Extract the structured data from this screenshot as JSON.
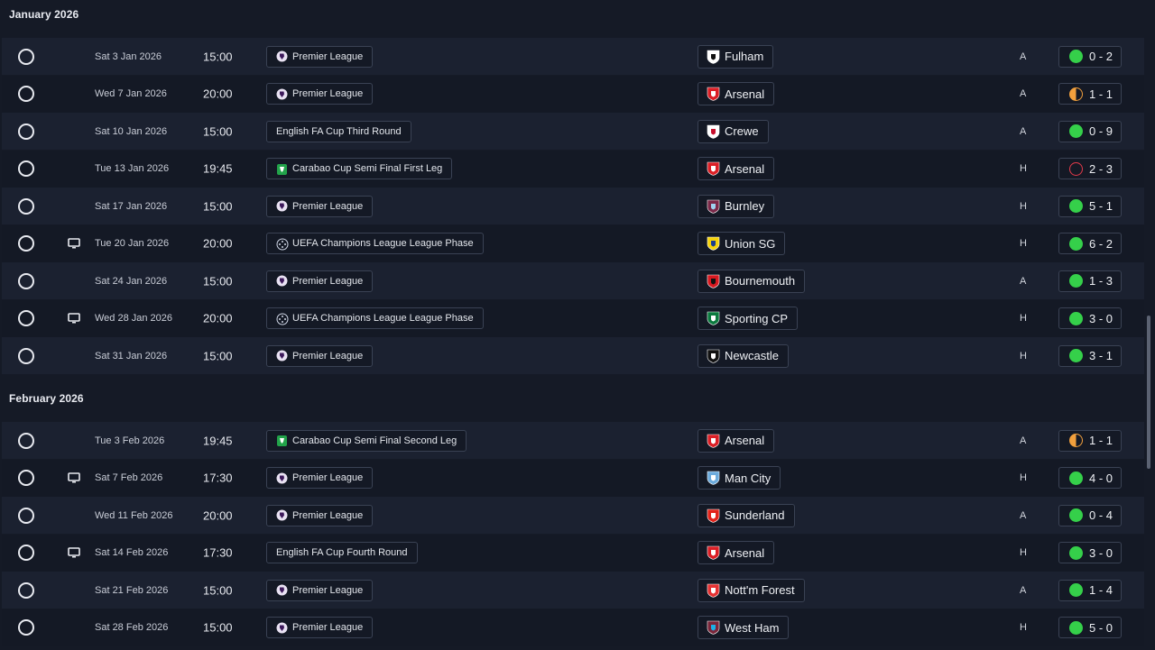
{
  "months": [
    {
      "label": "January 2026",
      "fixtures": [
        {
          "date": "Sat 3 Jan 2026",
          "time": "15:00",
          "competition": "Premier League",
          "comp_icon": "premier-league",
          "opponent": "Fulham",
          "crest": "fulham",
          "venue": "A",
          "result": "win",
          "score": "0 - 2",
          "tv": false
        },
        {
          "date": "Wed 7 Jan 2026",
          "time": "20:00",
          "competition": "Premier League",
          "comp_icon": "premier-league",
          "opponent": "Arsenal",
          "crest": "arsenal",
          "venue": "A",
          "result": "draw",
          "score": "1 - 1",
          "tv": false
        },
        {
          "date": "Sat 10 Jan 2026",
          "time": "15:00",
          "competition": "English FA Cup Third Round",
          "comp_icon": "",
          "opponent": "Crewe",
          "crest": "crewe",
          "venue": "A",
          "result": "win",
          "score": "0 - 9",
          "tv": false
        },
        {
          "date": "Tue 13 Jan 2026",
          "time": "19:45",
          "competition": "Carabao Cup Semi Final First Leg",
          "comp_icon": "carabao-cup",
          "opponent": "Arsenal",
          "crest": "arsenal",
          "venue": "H",
          "result": "loss",
          "score": "2 - 3",
          "tv": false
        },
        {
          "date": "Sat 17 Jan 2026",
          "time": "15:00",
          "competition": "Premier League",
          "comp_icon": "premier-league",
          "opponent": "Burnley",
          "crest": "burnley",
          "venue": "H",
          "result": "win",
          "score": "5 - 1",
          "tv": false
        },
        {
          "date": "Tue 20 Jan 2026",
          "time": "20:00",
          "competition": "UEFA Champions League League Phase",
          "comp_icon": "champions-league",
          "opponent": "Union SG",
          "crest": "union-sg",
          "venue": "H",
          "result": "win",
          "score": "6 - 2",
          "tv": true
        },
        {
          "date": "Sat 24 Jan 2026",
          "time": "15:00",
          "competition": "Premier League",
          "comp_icon": "premier-league",
          "opponent": "Bournemouth",
          "crest": "bournemouth",
          "venue": "A",
          "result": "win",
          "score": "1 - 3",
          "tv": false
        },
        {
          "date": "Wed 28 Jan 2026",
          "time": "20:00",
          "competition": "UEFA Champions League League Phase",
          "comp_icon": "champions-league",
          "opponent": "Sporting CP",
          "crest": "sporting",
          "venue": "H",
          "result": "win",
          "score": "3 - 0",
          "tv": true
        },
        {
          "date": "Sat 31 Jan 2026",
          "time": "15:00",
          "competition": "Premier League",
          "comp_icon": "premier-league",
          "opponent": "Newcastle",
          "crest": "newcastle",
          "venue": "H",
          "result": "win",
          "score": "3 - 1",
          "tv": false
        }
      ]
    },
    {
      "label": "February 2026",
      "fixtures": [
        {
          "date": "Tue 3 Feb 2026",
          "time": "19:45",
          "competition": "Carabao Cup Semi Final Second Leg",
          "comp_icon": "carabao-cup",
          "opponent": "Arsenal",
          "crest": "arsenal",
          "venue": "A",
          "result": "draw",
          "score": "1 - 1",
          "tv": false
        },
        {
          "date": "Sat 7 Feb 2026",
          "time": "17:30",
          "competition": "Premier League",
          "comp_icon": "premier-league",
          "opponent": "Man City",
          "crest": "man-city",
          "venue": "H",
          "result": "win",
          "score": "4 - 0",
          "tv": true
        },
        {
          "date": "Wed 11 Feb 2026",
          "time": "20:00",
          "competition": "Premier League",
          "comp_icon": "premier-league",
          "opponent": "Sunderland",
          "crest": "sunderland",
          "venue": "A",
          "result": "win",
          "score": "0 - 4",
          "tv": false
        },
        {
          "date": "Sat 14 Feb 2026",
          "time": "17:30",
          "competition": "English FA Cup Fourth Round",
          "comp_icon": "",
          "opponent": "Arsenal",
          "crest": "arsenal",
          "venue": "H",
          "result": "win",
          "score": "3 - 0",
          "tv": true
        },
        {
          "date": "Sat 21 Feb 2026",
          "time": "15:00",
          "competition": "Premier League",
          "comp_icon": "premier-league",
          "opponent": "Nott'm Forest",
          "crest": "forest",
          "venue": "A",
          "result": "win",
          "score": "1 - 4",
          "tv": false
        },
        {
          "date": "Sat 28 Feb 2026",
          "time": "15:00",
          "competition": "Premier League",
          "comp_icon": "premier-league",
          "opponent": "West Ham",
          "crest": "west-ham",
          "venue": "H",
          "result": "win",
          "score": "5 - 0",
          "tv": false
        }
      ]
    }
  ],
  "colors": {
    "background": "#151a26",
    "row_alt": "#1b2130",
    "win": "#35d04a",
    "draw": "#f2a03d",
    "loss": "#e33a4a"
  }
}
